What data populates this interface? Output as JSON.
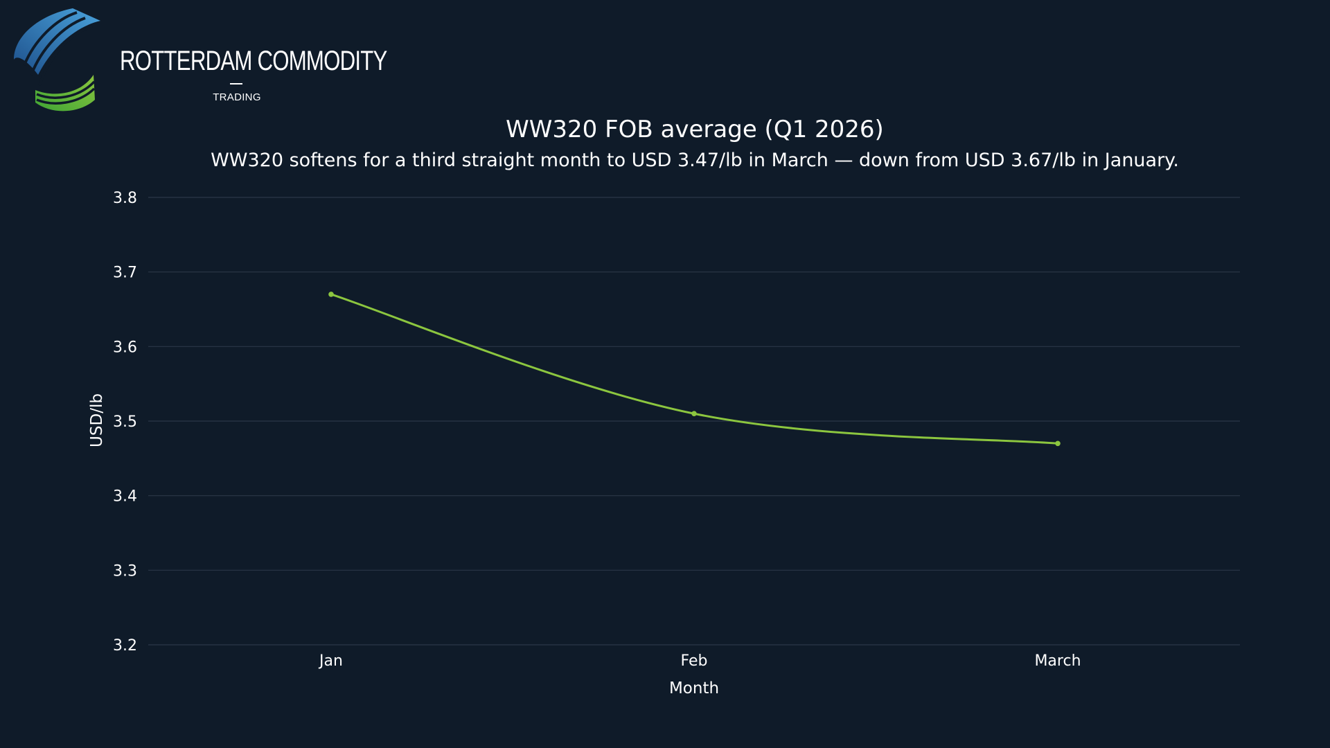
{
  "logo": {
    "name": "ROTTERDAM COMMODITY",
    "sub": "TRADING",
    "colors": {
      "blue_light": "#4aa3dc",
      "blue_dark": "#1d4f8a",
      "green_light": "#8cc63f",
      "green_dark": "#3fa535"
    }
  },
  "colors": {
    "background": "#0f1b29",
    "grid": "#2b3747",
    "line": "#8cc63f",
    "text": "#ffffff"
  },
  "chart_data": {
    "type": "line",
    "title": "WW320 FOB average (Q1 2026)",
    "subtitle": "WW320 softens for a third straight month to USD 3.47/lb in March — down from USD 3.67/lb in January.",
    "xlabel": "Month",
    "ylabel": "USD/lb",
    "categories": [
      "Jan",
      "Feb",
      "March"
    ],
    "series": [
      {
        "values": [
          3.67,
          3.51,
          3.47
        ]
      }
    ],
    "ylim": [
      3.2,
      3.8
    ],
    "yticks": [
      "3.8",
      "3.7",
      "3.6",
      "3.5",
      "3.4",
      "3.3",
      "3.2"
    ],
    "grid": true,
    "legend": "none",
    "line_shape": "smooth",
    "markers": true
  }
}
